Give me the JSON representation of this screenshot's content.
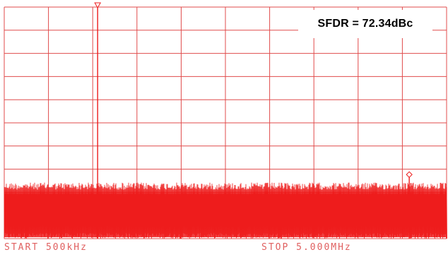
{
  "colors": {
    "background": "#ffffff",
    "grid": "#e04b4b",
    "trace": "#ee1c1c",
    "text": "#000000",
    "axis_text": "#e06060"
  },
  "annotation": {
    "sfdr_label": "SFDR = 72.34dBc"
  },
  "axis": {
    "start_label": "START 500kHz",
    "stop_label": "STOP 5.000MHz"
  },
  "chart_data": {
    "type": "line",
    "title": "",
    "xlabel": "",
    "ylabel": "",
    "x_start_mhz": 0.5,
    "x_stop_mhz": 5.0,
    "x_divisions": 10,
    "y_divisions": 10,
    "y_unit": "dB",
    "grid": true,
    "peaks": [
      {
        "name": "fundamental",
        "x_mhz": 1.45,
        "level_db": 0,
        "marker": "triangle"
      },
      {
        "name": "spur",
        "x_mhz": 4.62,
        "level_db": -72.34,
        "marker": "diamond"
      }
    ],
    "noise_floor_db": -77,
    "noise_floor_bottom_db": -100
  }
}
